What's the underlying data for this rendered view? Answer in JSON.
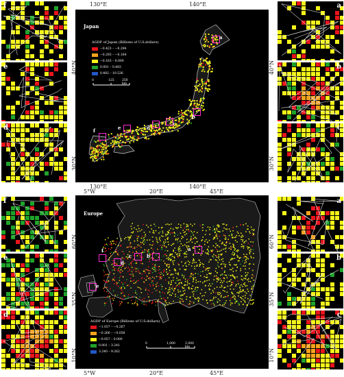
{
  "japan": {
    "title": "Japan",
    "coords_top": [
      "130°E",
      "140°E"
    ],
    "coords_bottom": [
      "130°E",
      "140°E"
    ],
    "coords_left": [
      "40°N",
      "30°N"
    ],
    "coords_right": [
      "40°N",
      "30°N"
    ],
    "legend_title": "AGDP of Japan (Billions of U.S.dollars)",
    "legend": [
      {
        "label": "−0.423 – −0.294",
        "color": "#e8141c"
      },
      {
        "label": "−0.293 – −0.164",
        "color": "#f7a41d"
      },
      {
        "label": "−0.163 – 0.000",
        "color": "#f5f51a"
      },
      {
        "label": "0.001 – 0.483",
        "color": "#1fa32b"
      },
      {
        "label": "0.482 – 10.536",
        "color": "#2357c4"
      }
    ],
    "scale_labels": [
      "0",
      "125",
      "250 km"
    ],
    "insets_left": [
      "f",
      "e",
      "d"
    ],
    "insets_right": [
      "a",
      "b",
      "c"
    ],
    "region_labels": [
      "a",
      "b",
      "c",
      "d",
      "e",
      "f"
    ]
  },
  "europe": {
    "title": "Europe",
    "coords_top": [
      "5°W",
      "20°E",
      "45°E"
    ],
    "coords_bottom": [
      "5°W",
      "20°E",
      "45°E"
    ],
    "coords_left": [
      "60°N",
      "35°N",
      "10°N"
    ],
    "coords_right": [
      "60°N",
      "35°N",
      "10°N"
    ],
    "legend_title": "AGDP of Europe (Billions of U.S.dollars)",
    "legend": [
      {
        "label": "−1.037 – −0.267",
        "color": "#e8141c"
      },
      {
        "label": "−0.266 – −0.058",
        "color": "#f7a41d"
      },
      {
        "label": "−0.057 – 0.000",
        "color": "#f5f51a"
      },
      {
        "label": "0.001 – 3.241",
        "color": "#1fa32b"
      },
      {
        "label": "3.240 – 9.262",
        "color": "#2357c4"
      }
    ],
    "scale_labels": [
      "0",
      "1,000",
      "2,000 km"
    ],
    "insets_left": [
      "f",
      "e",
      "d"
    ],
    "insets_right": [
      "a",
      "b",
      "c"
    ],
    "region_labels": [
      "a",
      "b",
      "c",
      "d",
      "e",
      "f"
    ]
  }
}
